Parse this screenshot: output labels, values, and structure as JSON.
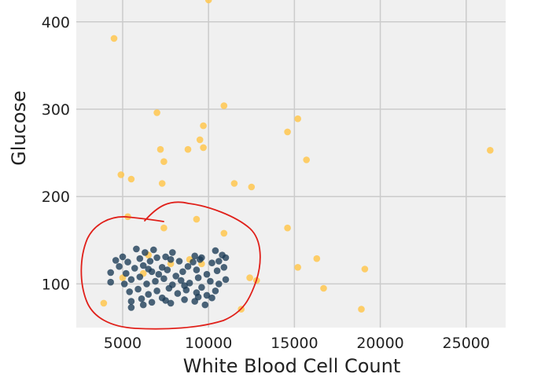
{
  "chart_data": {
    "type": "scatter",
    "title": "",
    "xlabel": "White Blood Cell Count",
    "ylabel": "Glucose",
    "xlim": [
      2300,
      27300
    ],
    "ylim": [
      50,
      425
    ],
    "xticks": [
      5000,
      10000,
      15000,
      20000,
      25000
    ],
    "yticks": [
      100,
      200,
      300,
      400
    ],
    "xtick_labels": [
      "5000",
      "10000",
      "15000",
      "20000",
      "25000"
    ],
    "ytick_labels": [
      "100",
      "200",
      "300",
      "400"
    ],
    "grid": true,
    "background": "#f0f0f0",
    "annotation": "hand-drawn red loop around the dark cluster",
    "annotation_color": "#e0201a",
    "series": [
      {
        "color": "#ffc74f",
        "points": [
          [
            4500,
            381
          ],
          [
            7000,
            296
          ],
          [
            9700,
            281
          ],
          [
            10900,
            304
          ],
          [
            15200,
            289
          ],
          [
            14600,
            274
          ],
          [
            9500,
            265
          ],
          [
            9700,
            256
          ],
          [
            8800,
            254
          ],
          [
            7200,
            254
          ],
          [
            7400,
            240
          ],
          [
            15700,
            242
          ],
          [
            26400,
            253
          ],
          [
            4900,
            225
          ],
          [
            5500,
            220
          ],
          [
            7300,
            215
          ],
          [
            11500,
            215
          ],
          [
            12500,
            211
          ],
          [
            5300,
            177
          ],
          [
            9300,
            174
          ],
          [
            7400,
            164
          ],
          [
            14600,
            164
          ],
          [
            10900,
            158
          ],
          [
            16300,
            129
          ],
          [
            15200,
            119
          ],
          [
            19100,
            117
          ],
          [
            12400,
            107
          ],
          [
            12800,
            104
          ],
          [
            5000,
            107
          ],
          [
            16700,
            95
          ],
          [
            3900,
            78
          ],
          [
            11900,
            71
          ],
          [
            18900,
            71
          ],
          [
            10000,
            425
          ],
          [
            6500,
            133
          ],
          [
            8900,
            128
          ],
          [
            9600,
            123
          ],
          [
            7800,
            123
          ],
          [
            6200,
            112
          ]
        ]
      },
      {
        "color": "#1a3a55",
        "points": [
          [
            5800,
            140
          ],
          [
            6300,
            136
          ],
          [
            6800,
            139
          ],
          [
            7500,
            131
          ],
          [
            7900,
            136
          ],
          [
            9200,
            132
          ],
          [
            9600,
            130
          ],
          [
            10400,
            138
          ],
          [
            10800,
            133
          ],
          [
            4600,
            127
          ],
          [
            5000,
            131
          ],
          [
            5300,
            125
          ],
          [
            6000,
            129
          ],
          [
            6600,
            126
          ],
          [
            7000,
            130
          ],
          [
            7300,
            119
          ],
          [
            8300,
            126
          ],
          [
            8800,
            120
          ],
          [
            9100,
            125
          ],
          [
            9500,
            128
          ],
          [
            10200,
            124
          ],
          [
            10600,
            126
          ],
          [
            11000,
            130
          ],
          [
            4300,
            113
          ],
          [
            4800,
            120
          ],
          [
            5700,
            118
          ],
          [
            6200,
            121
          ],
          [
            6700,
            114
          ],
          [
            7100,
            111
          ],
          [
            7600,
            116
          ],
          [
            8100,
            109
          ],
          [
            8500,
            114
          ],
          [
            9300,
            116
          ],
          [
            9900,
            111
          ],
          [
            10500,
            115
          ],
          [
            10900,
            119
          ],
          [
            4300,
            102
          ],
          [
            5100,
            100
          ],
          [
            5500,
            105
          ],
          [
            6000,
            108
          ],
          [
            6400,
            100
          ],
          [
            6900,
            103
          ],
          [
            7400,
            106
          ],
          [
            7900,
            99
          ],
          [
            8400,
            104
          ],
          [
            8900,
            101
          ],
          [
            9400,
            107
          ],
          [
            10100,
            103
          ],
          [
            10600,
            100
          ],
          [
            11000,
            105
          ],
          [
            5400,
            91
          ],
          [
            5900,
            94
          ],
          [
            6500,
            88
          ],
          [
            7000,
            92
          ],
          [
            7700,
            95
          ],
          [
            8200,
            89
          ],
          [
            8700,
            93
          ],
          [
            9300,
            90
          ],
          [
            9900,
            87
          ],
          [
            10400,
            92
          ],
          [
            5500,
            80
          ],
          [
            6100,
            83
          ],
          [
            6700,
            79
          ],
          [
            7300,
            84
          ],
          [
            7800,
            78
          ],
          [
            8600,
            82
          ],
          [
            9200,
            80
          ],
          [
            9800,
            76
          ],
          [
            5500,
            73
          ],
          [
            6200,
            76
          ],
          [
            7500,
            81
          ],
          [
            9400,
            85
          ],
          [
            9600,
            96
          ],
          [
            10200,
            84
          ],
          [
            6500,
            117
          ],
          [
            7800,
            128
          ],
          [
            5200,
            112
          ],
          [
            8600,
            98
          ]
        ]
      }
    ]
  }
}
